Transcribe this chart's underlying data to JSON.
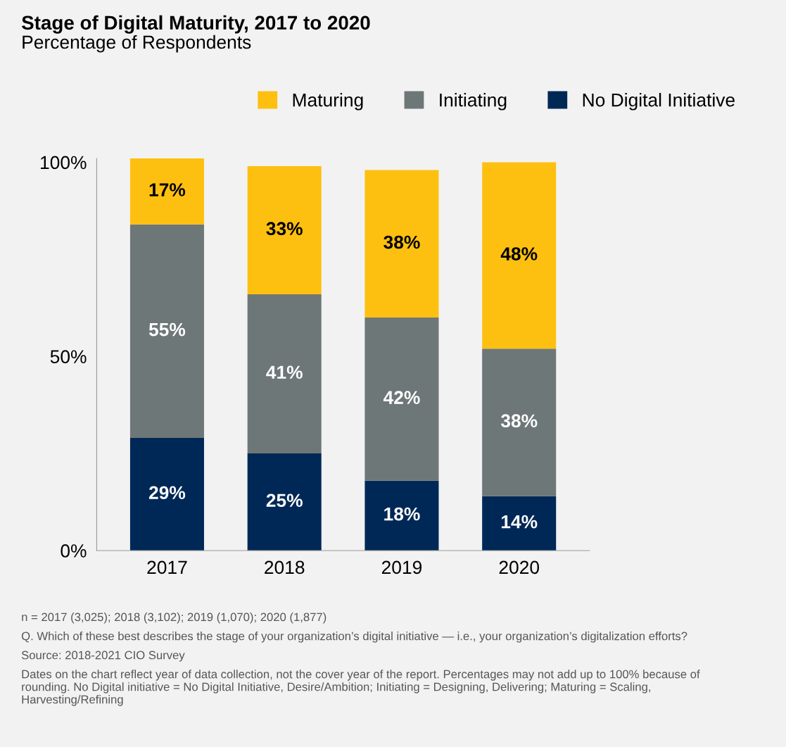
{
  "chart_data": {
    "type": "bar",
    "stacked": true,
    "title": "Stage of Digital Maturity, 2017 to 2020",
    "subtitle": "Percentage of Respondents",
    "categories": [
      "2017",
      "2018",
      "2019",
      "2020"
    ],
    "series": [
      {
        "name": "No Digital Initiative",
        "color": "#002856",
        "values": [
          29,
          25,
          18,
          14
        ],
        "value_labels": [
          "29%",
          "25%",
          "18%",
          "14%"
        ]
      },
      {
        "name": "Initiating",
        "color": "#6e7777",
        "values": [
          55,
          41,
          42,
          38
        ],
        "value_labels": [
          "55%",
          "41%",
          "42%",
          "38%"
        ]
      },
      {
        "name": "Maturing",
        "color": "#fdc010",
        "values": [
          17,
          33,
          38,
          48
        ],
        "value_labels": [
          "17%",
          "33%",
          "38%",
          "48%"
        ]
      }
    ],
    "ylim": [
      0,
      101
    ],
    "yticks": [
      {
        "value": 0,
        "label": "0%"
      },
      {
        "value": 50,
        "label": "50%"
      },
      {
        "value": 100,
        "label": "100%"
      }
    ],
    "grid": false,
    "legend": "top right",
    "annotations": [
      "n = 2017 (3,025); 2018 (3,102); 2019 (1,070); 2020 (1,877)",
      "Q. Which of these best describes the stage of your organization’s digital initiative — i.e., your organization’s digitalization efforts?",
      "Source: 2018-2021 CIO Survey",
      "Dates on the chart reflect year of data collection, not the cover year of the report. Percentages may not add up to 100% because of rounding. No Digital initiative = No Digital Initiative, Desire/Ambition; Initiating = Designing, Delivering; Maturing = Scaling, Harvesting/Refining"
    ]
  }
}
